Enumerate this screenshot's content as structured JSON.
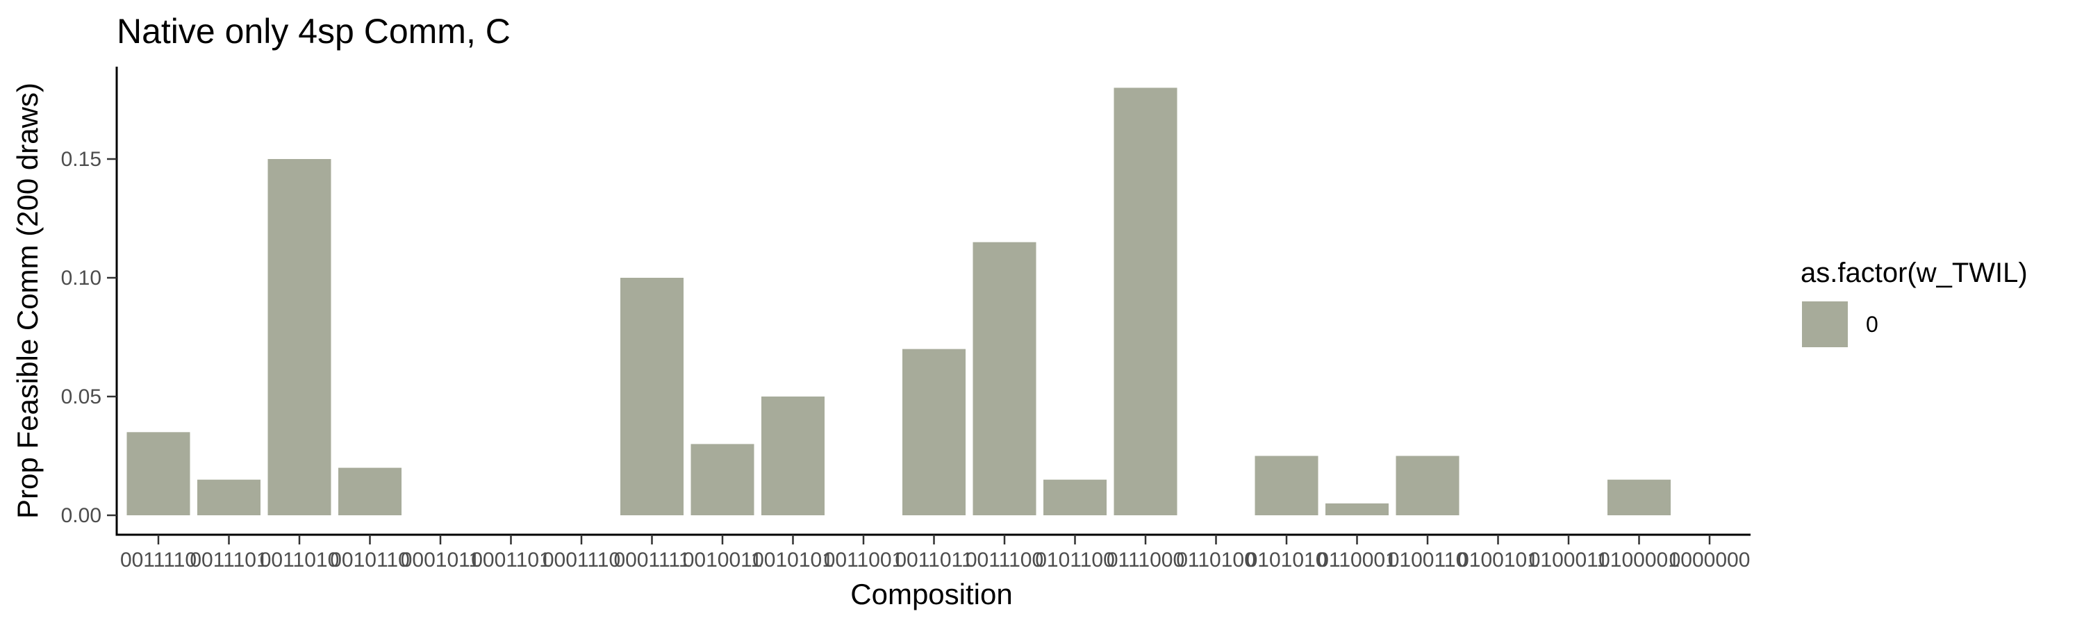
{
  "chart_data": {
    "type": "bar",
    "title": "Native only 4sp Comm, C",
    "xlabel": "Composition",
    "ylabel": "Prop Feasible Comm (200 draws)",
    "ylim": [
      0,
      0.18
    ],
    "y_ticks": [
      "0.00",
      "0.05",
      "0.10",
      "0.15"
    ],
    "y_tick_values": [
      0,
      0.05,
      0.1,
      0.15
    ],
    "grid": false,
    "categories": [
      "0011110",
      "0011101",
      "0011010",
      "0010110",
      "0001011",
      "0001101",
      "0001110",
      "0001111",
      "0010011",
      "0010101",
      "0011001",
      "0011011",
      "0011100",
      "0101100",
      "0111000",
      "0110100",
      "0101010",
      "0110001",
      "0100110",
      "0100101",
      "0100011",
      "0100001",
      "0000000"
    ],
    "values": [
      0.035,
      0.015,
      0.15,
      0.02,
      0,
      0,
      0,
      0.1,
      0.03,
      0.05,
      0,
      0.07,
      0.115,
      0.015,
      0.18,
      0,
      0.025,
      0.005,
      0.025,
      0,
      0,
      0.015,
      0
    ],
    "bar_color": "#a7ab9a",
    "legend": {
      "title": "as.factor(w_TWIL)",
      "items": [
        {
          "label": "0",
          "color": "#a7ab9a"
        }
      ],
      "placement": "right"
    }
  }
}
